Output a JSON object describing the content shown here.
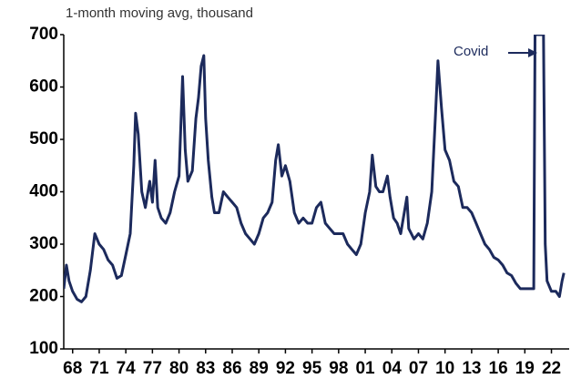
{
  "chart_data": {
    "type": "line",
    "subtitle": "1-month moving avg, thousand",
    "annotation": "Covid",
    "color": "#1c2a5c",
    "xlim": [
      1967,
      2024
    ],
    "ylim": [
      100,
      700
    ],
    "yticks": [
      100,
      200,
      300,
      400,
      500,
      600,
      700
    ],
    "xticks": [
      {
        "value": 1968,
        "label": "68"
      },
      {
        "value": 1971,
        "label": "71"
      },
      {
        "value": 1974,
        "label": "74"
      },
      {
        "value": 1977,
        "label": "77"
      },
      {
        "value": 1980,
        "label": "80"
      },
      {
        "value": 1983,
        "label": "83"
      },
      {
        "value": 1986,
        "label": "86"
      },
      {
        "value": 1989,
        "label": "89"
      },
      {
        "value": 1992,
        "label": "92"
      },
      {
        "value": 1995,
        "label": "95"
      },
      {
        "value": 1998,
        "label": "98"
      },
      {
        "value": 2001,
        "label": "01"
      },
      {
        "value": 2004,
        "label": "04"
      },
      {
        "value": 2007,
        "label": "07"
      },
      {
        "value": 2010,
        "label": "10"
      },
      {
        "value": 2013,
        "label": "13"
      },
      {
        "value": 2016,
        "label": "16"
      },
      {
        "value": 2019,
        "label": "19"
      },
      {
        "value": 2022,
        "label": "22"
      }
    ],
    "x": [
      1967.0,
      1967.3,
      1967.6,
      1968.0,
      1968.5,
      1969.0,
      1969.5,
      1970.0,
      1970.5,
      1971.0,
      1971.5,
      1972.0,
      1972.5,
      1973.0,
      1973.5,
      1974.0,
      1974.5,
      1974.9,
      1975.1,
      1975.4,
      1975.8,
      1976.2,
      1976.7,
      1977.0,
      1977.3,
      1977.6,
      1978.0,
      1978.5,
      1979.0,
      1979.5,
      1980.0,
      1980.4,
      1980.7,
      1981.0,
      1981.5,
      1981.9,
      1982.2,
      1982.5,
      1982.8,
      1983.0,
      1983.3,
      1983.7,
      1984.0,
      1984.5,
      1985.0,
      1985.5,
      1986.0,
      1986.5,
      1987.0,
      1987.5,
      1988.0,
      1988.5,
      1989.0,
      1989.5,
      1990.0,
      1990.5,
      1990.9,
      1991.2,
      1991.6,
      1992.0,
      1992.5,
      1993.0,
      1993.5,
      1994.0,
      1994.5,
      1995.0,
      1995.5,
      1996.0,
      1996.5,
      1997.0,
      1997.5,
      1998.0,
      1998.5,
      1999.0,
      1999.5,
      2000.0,
      2000.5,
      2001.0,
      2001.5,
      2001.8,
      2002.2,
      2002.6,
      2003.0,
      2003.5,
      2003.8,
      2004.2,
      2004.6,
      2005.0,
      2005.7,
      2005.9,
      2006.5,
      2007.0,
      2007.5,
      2008.0,
      2008.5,
      2008.9,
      2009.2,
      2009.6,
      2010.0,
      2010.5,
      2011.0,
      2011.5,
      2012.0,
      2012.5,
      2013.0,
      2013.5,
      2014.0,
      2014.5,
      2015.0,
      2015.5,
      2016.0,
      2016.5,
      2017.0,
      2017.5,
      2018.0,
      2018.5,
      2019.0,
      2019.5,
      2020.0,
      2020.15,
      2021.1,
      2021.3,
      2021.5,
      2022.0,
      2022.5,
      2022.9,
      2023.2,
      2023.4
    ],
    "values": [
      215,
      260,
      230,
      210,
      195,
      190,
      200,
      250,
      320,
      300,
      290,
      270,
      260,
      235,
      240,
      280,
      320,
      450,
      550,
      510,
      400,
      370,
      420,
      380,
      460,
      370,
      350,
      340,
      360,
      400,
      430,
      620,
      480,
      420,
      440,
      540,
      580,
      640,
      660,
      540,
      460,
      390,
      360,
      360,
      400,
      390,
      380,
      370,
      340,
      320,
      310,
      300,
      320,
      350,
      360,
      380,
      460,
      490,
      430,
      450,
      420,
      360,
      340,
      350,
      340,
      340,
      370,
      380,
      340,
      330,
      320,
      320,
      320,
      300,
      290,
      280,
      300,
      360,
      400,
      470,
      410,
      400,
      400,
      430,
      390,
      350,
      340,
      320,
      390,
      330,
      310,
      320,
      310,
      340,
      400,
      540,
      650,
      560,
      480,
      460,
      420,
      410,
      370,
      370,
      360,
      340,
      320,
      300,
      290,
      275,
      270,
      260,
      245,
      240,
      225,
      215,
      215,
      215,
      215,
      700,
      700,
      300,
      230,
      210,
      210,
      200,
      230,
      245
    ]
  }
}
